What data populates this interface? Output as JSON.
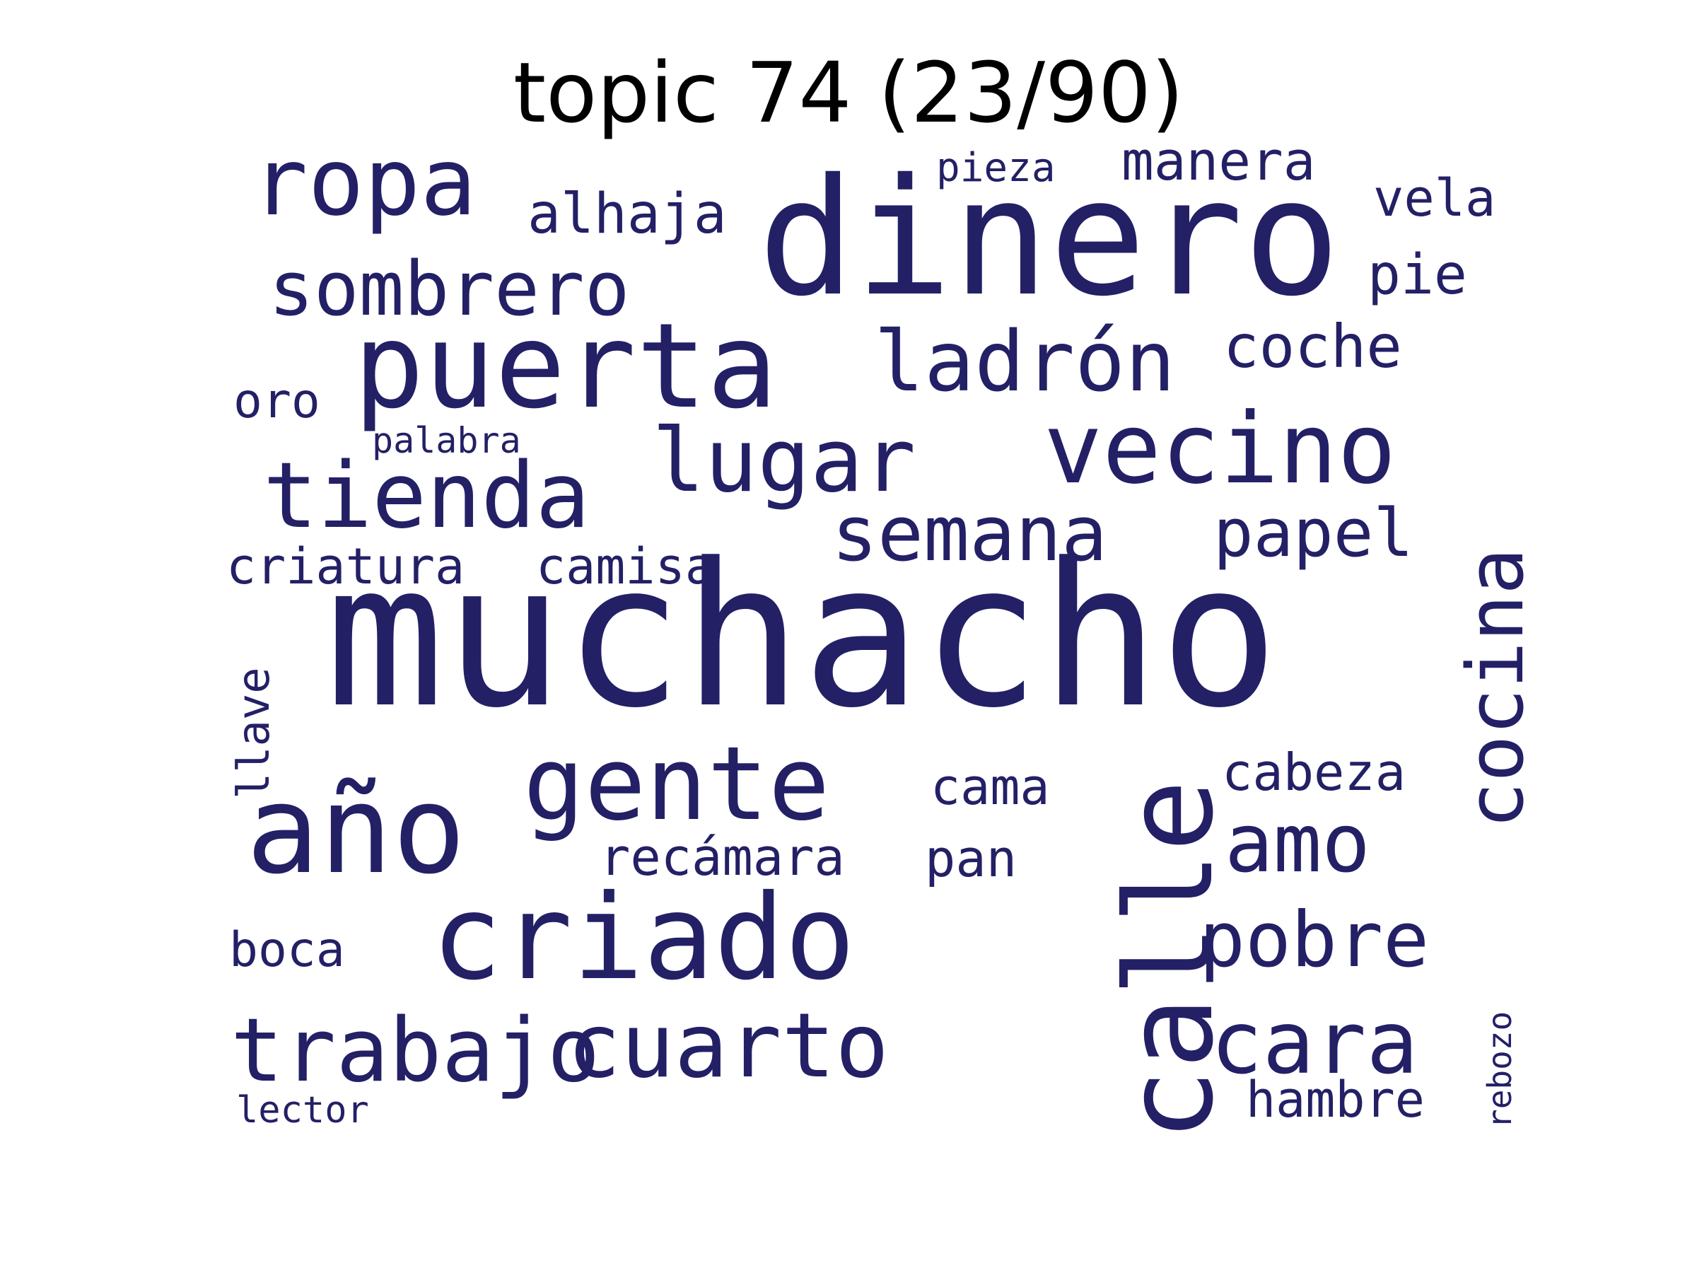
{
  "title": "topic 74 (23/90)",
  "colors": {
    "background": "#ffffff",
    "word": "#232066",
    "title": "#000000"
  },
  "words": [
    {
      "text": "muchacho",
      "orientation": "horizontal"
    },
    {
      "text": "dinero",
      "orientation": "horizontal"
    },
    {
      "text": "puerta",
      "orientation": "horizontal"
    },
    {
      "text": "calle",
      "orientation": "vertical"
    },
    {
      "text": "año",
      "orientation": "horizontal"
    },
    {
      "text": "criado",
      "orientation": "horizontal"
    },
    {
      "text": "vecino",
      "orientation": "horizontal"
    },
    {
      "text": "gente",
      "orientation": "horizontal"
    },
    {
      "text": "ropa",
      "orientation": "horizontal"
    },
    {
      "text": "tienda",
      "orientation": "horizontal"
    },
    {
      "text": "trabajo",
      "orientation": "horizontal"
    },
    {
      "text": "cuarto",
      "orientation": "horizontal"
    },
    {
      "text": "cara",
      "orientation": "horizontal"
    },
    {
      "text": "lugar",
      "orientation": "horizontal"
    },
    {
      "text": "cocina",
      "orientation": "vertical"
    },
    {
      "text": "ladrón",
      "orientation": "horizontal"
    },
    {
      "text": "semana",
      "orientation": "horizontal"
    },
    {
      "text": "sombrero",
      "orientation": "horizontal"
    },
    {
      "text": "amo",
      "orientation": "horizontal"
    },
    {
      "text": "pobre",
      "orientation": "horizontal"
    },
    {
      "text": "papel",
      "orientation": "horizontal"
    },
    {
      "text": "coche",
      "orientation": "horizontal"
    },
    {
      "text": "alhaja",
      "orientation": "horizontal"
    },
    {
      "text": "manera",
      "orientation": "horizontal"
    },
    {
      "text": "pie",
      "orientation": "horizontal"
    },
    {
      "text": "vela",
      "orientation": "horizontal"
    },
    {
      "text": "criatura",
      "orientation": "horizontal"
    },
    {
      "text": "camisa",
      "orientation": "horizontal"
    },
    {
      "text": "recámara",
      "orientation": "horizontal"
    },
    {
      "text": "pan",
      "orientation": "horizontal"
    },
    {
      "text": "cabeza",
      "orientation": "horizontal"
    },
    {
      "text": "cama",
      "orientation": "horizontal"
    },
    {
      "text": "hambre",
      "orientation": "horizontal"
    },
    {
      "text": "boca",
      "orientation": "horizontal"
    },
    {
      "text": "oro",
      "orientation": "horizontal"
    },
    {
      "text": "llave",
      "orientation": "vertical"
    },
    {
      "text": "pieza",
      "orientation": "horizontal"
    },
    {
      "text": "palabra",
      "orientation": "horizontal"
    },
    {
      "text": "lector",
      "orientation": "horizontal"
    },
    {
      "text": "rebozo",
      "orientation": "vertical"
    }
  ]
}
